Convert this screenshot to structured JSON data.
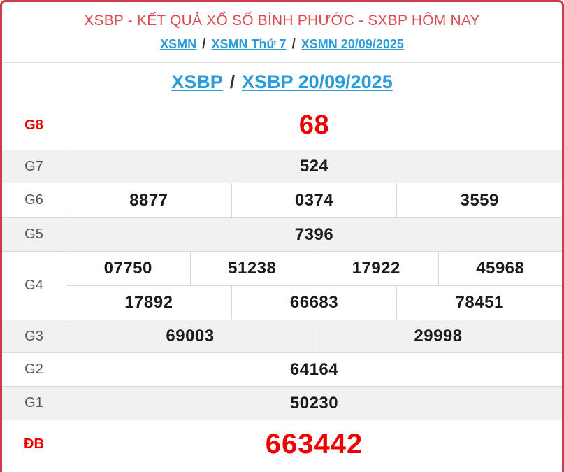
{
  "card": {
    "title": "XSBP - KẾT QUẢ XỔ SỐ BÌNH PHƯỚC - SXBP HÔM NAY",
    "breadcrumb_top": {
      "separator": "/",
      "links": [
        "XSMN",
        "XSMN Thứ 7",
        "XSMN 20/09/2025"
      ]
    },
    "breadcrumb_sub": {
      "separator": "/",
      "links": [
        "XSBP",
        "XSBP 20/09/2025"
      ]
    }
  },
  "colors": {
    "border-red": "#ca3b4b",
    "title-red": "#dc4a50",
    "link-blue": "#2b9cd8",
    "prize-red": "#ee0000",
    "row-alt-bg": "#f1f1f1",
    "cell-border": "#d9d9d9",
    "label-gray": "#555555",
    "number-black": "#1b1b1b"
  },
  "table": {
    "rows": [
      {
        "label": "G8",
        "cells": [
          "68"
        ]
      },
      {
        "label": "G7",
        "cells": [
          "524"
        ]
      },
      {
        "label": "G6",
        "cells": [
          "8877",
          "0374",
          "3559"
        ]
      },
      {
        "label": "G5",
        "cells": [
          "7396"
        ]
      },
      {
        "label": "G4",
        "lines": [
          [
            "07750",
            "51238",
            "17922",
            "45968"
          ],
          [
            "17892",
            "66683",
            "78451"
          ]
        ]
      },
      {
        "label": "G3",
        "cells": [
          "69003",
          "29998"
        ]
      },
      {
        "label": "G2",
        "cells": [
          "64164"
        ]
      },
      {
        "label": "G1",
        "cells": [
          "50230"
        ]
      },
      {
        "label": "ĐB",
        "cells": [
          "663442"
        ]
      }
    ]
  }
}
